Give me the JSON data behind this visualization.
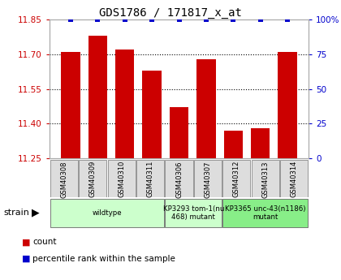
{
  "title": "GDS1786 / 171817_x_at",
  "samples": [
    "GSM40308",
    "GSM40309",
    "GSM40310",
    "GSM40311",
    "GSM40306",
    "GSM40307",
    "GSM40312",
    "GSM40313",
    "GSM40314"
  ],
  "count_values": [
    11.71,
    11.78,
    11.72,
    11.63,
    11.47,
    11.68,
    11.37,
    11.38,
    11.71
  ],
  "percentile_values": [
    100,
    100,
    100,
    100,
    100,
    100,
    100,
    100,
    100
  ],
  "ylim_left": [
    11.25,
    11.85
  ],
  "yticks_left": [
    11.25,
    11.4,
    11.55,
    11.7,
    11.85
  ],
  "yticks_right": [
    0,
    25,
    50,
    75,
    100
  ],
  "ylim_right": [
    0,
    100
  ],
  "bar_color": "#cc0000",
  "dot_color": "#0000cc",
  "groups": [
    {
      "label": "wildtype",
      "start": 0,
      "end": 4,
      "color": "#ccffcc"
    },
    {
      "label": "KP3293 tom-1(nu\n468) mutant",
      "start": 4,
      "end": 6,
      "color": "#ccffcc"
    },
    {
      "label": "KP3365 unc-43(n1186)\nmutant",
      "start": 6,
      "end": 9,
      "color": "#88ee88"
    }
  ],
  "legend_items": [
    {
      "label": "count",
      "color": "#cc0000"
    },
    {
      "label": "percentile rank within the sample",
      "color": "#0000cc"
    }
  ],
  "strain_label": "strain",
  "background_color": "#ffffff",
  "tick_label_color_left": "#cc0000",
  "tick_label_color_right": "#0000cc",
  "grid_yticks": [
    11.4,
    11.55,
    11.7
  ],
  "bar_width": 0.7
}
